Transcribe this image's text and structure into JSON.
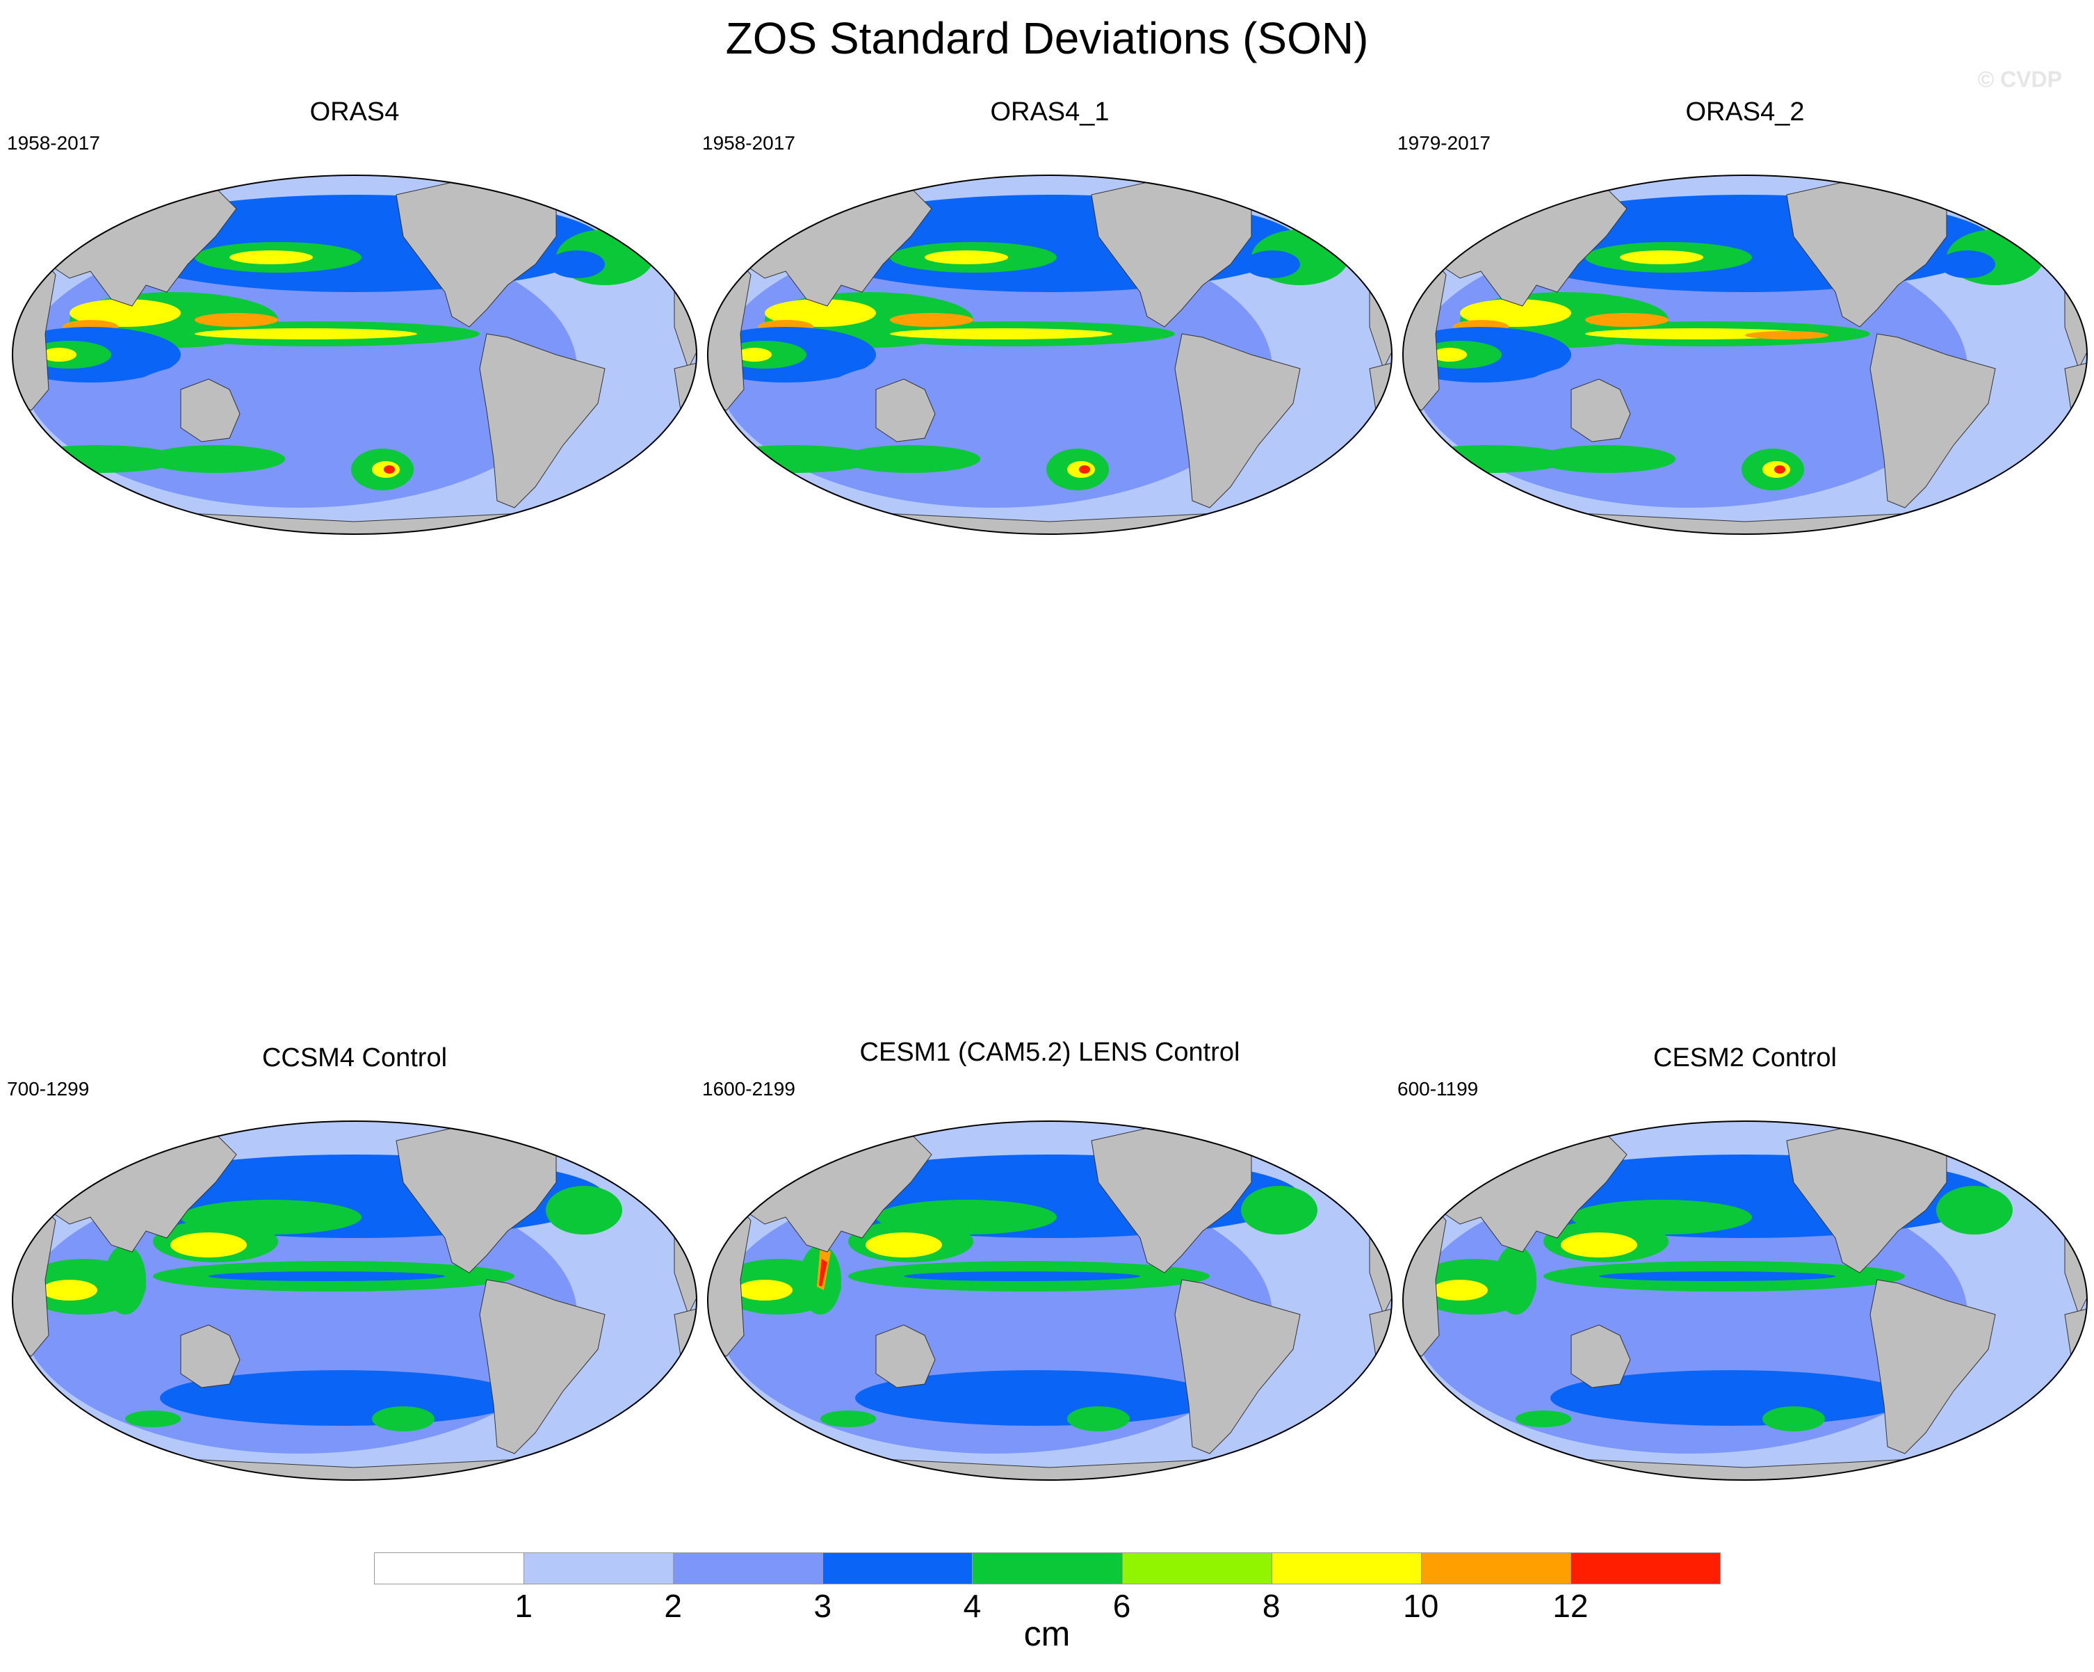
{
  "figure": {
    "title": "ZOS Standard Deviations (SON)",
    "watermark": "© CVDP"
  },
  "panels": [
    {
      "title": "ORAS4",
      "period": "1958-2017"
    },
    {
      "title": "ORAS4_1",
      "period": "1958-2017"
    },
    {
      "title": "ORAS4_2",
      "period": "1979-2017"
    },
    {
      "title": "CCSM4 Control",
      "period": "700-1299"
    },
    {
      "title": "CESM1 (CAM5.2) LENS Control",
      "period": "1600-2199"
    },
    {
      "title": "CESM2 Control",
      "period": "600-1199"
    }
  ],
  "colorbar": {
    "units": "cm",
    "labels": [
      "1",
      "2",
      "3",
      "4",
      "6",
      "8",
      "10",
      "12"
    ],
    "colors": [
      "#ffffff",
      "#b4c8fa",
      "#7d96fa",
      "#0a64f5",
      "#0ac837",
      "#91f500",
      "#ffff00",
      "#ffa000",
      "#ff1e00"
    ]
  },
  "colors": {
    "land": "#bebebe",
    "ocean_low": "#b4c8fa",
    "ocean_mid": "#7d96fa",
    "ocean_high": "#0a64f5",
    "green": "#0ac837",
    "yellow": "#ffff00",
    "orange": "#ffa000",
    "red": "#ff1e00"
  }
}
